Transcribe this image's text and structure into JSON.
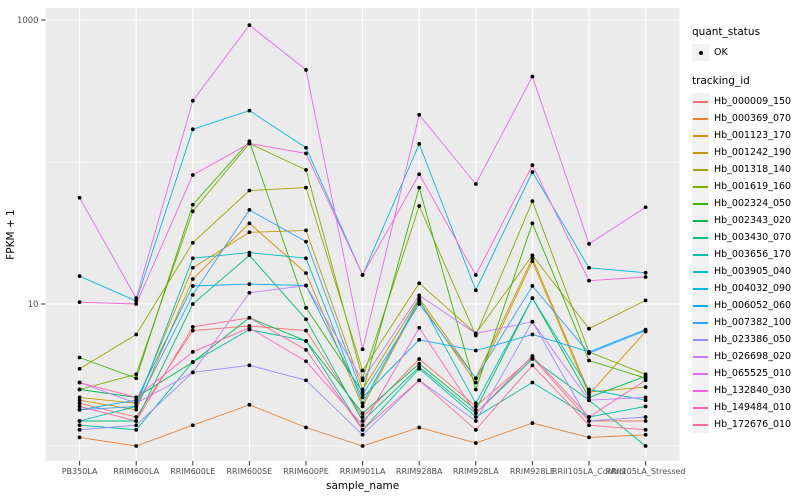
{
  "chart_data": {
    "type": "line",
    "title": "",
    "xlabel": "sample_name",
    "ylabel": "FPKM + 1",
    "y_scale": "log10",
    "grid": true,
    "legend_position": "right",
    "ylim": [
      0.8,
      1200
    ],
    "y_ticks": [
      {
        "value": 1000,
        "label": "1000"
      },
      {
        "value": 10,
        "label": "10"
      }
    ],
    "y_minor_gridlines": [
      1,
      100
    ],
    "point_marker": {
      "shape": "circle",
      "color": "#000000"
    },
    "categories": [
      "PB350LA",
      "RRIM600LA",
      "RRIM600LE",
      "RRIM600SE",
      "RRIM600PE",
      "RRIM901LA",
      "RRIM928BA",
      "RRIM928LA",
      "RRIM928LE",
      "RRII105LA_Control",
      "RRII105LA_Stressed"
    ],
    "series": [
      {
        "name": "Hb_000009_150",
        "color": "#F8766D",
        "values": [
          2.0,
          1.6,
          6.5,
          7.0,
          6.5,
          1.6,
          4.1,
          1.9,
          4.2,
          1.5,
          1.5
        ]
      },
      {
        "name": "Hb_000369_070",
        "color": "#EA8331",
        "values": [
          1.15,
          1.0,
          1.4,
          1.95,
          1.35,
          1.0,
          1.35,
          1.05,
          1.45,
          1.15,
          1.2
        ]
      },
      {
        "name": "Hb_001123_170",
        "color": "#D89000",
        "values": [
          2.1,
          1.8,
          15,
          37,
          16.5,
          1.9,
          10.5,
          2.8,
          20,
          2.3,
          6.4
        ]
      },
      {
        "name": "Hb_001242_190",
        "color": "#C09B00",
        "values": [
          2.2,
          2.0,
          18,
          32,
          33,
          2.5,
          11,
          3.0,
          21,
          2.4,
          2.6
        ]
      },
      {
        "name": "Hb_001318_140",
        "color": "#A3A500",
        "values": [
          3.5,
          6.1,
          27,
          63,
          66,
          3.4,
          14,
          6.2,
          22,
          6.7,
          10.6
        ]
      },
      {
        "name": "Hb_001619_160",
        "color": "#7CAE00",
        "values": [
          2.5,
          3.2,
          45,
          135,
          88,
          3.0,
          49,
          6.0,
          53,
          4.6,
          3.2
        ]
      },
      {
        "name": "Hb_002324_050",
        "color": "#39B600",
        "values": [
          4.2,
          3.0,
          50,
          140,
          9.4,
          2.4,
          66,
          2.5,
          37,
          4.0,
          3.0
        ]
      },
      {
        "name": "Hb_002343_020",
        "color": "#00BB4E",
        "values": [
          2.5,
          2.2,
          3.9,
          8.0,
          5.5,
          1.7,
          3.8,
          1.8,
          11,
          2.2,
          3.1
        ]
      },
      {
        "name": "Hb_003430_070",
        "color": "#00BF7D",
        "values": [
          1.5,
          1.5,
          10,
          22,
          7.8,
          1.5,
          3.6,
          1.7,
          4.1,
          2.1,
          1.0
        ]
      },
      {
        "name": "Hb_003656_170",
        "color": "#00C1A3",
        "values": [
          1.4,
          1.3,
          3.9,
          6.6,
          5.5,
          1.3,
          3.5,
          1.6,
          2.8,
          1.6,
          1.9
        ]
      },
      {
        "name": "Hb_003905_040",
        "color": "#00BFC4",
        "values": [
          1.5,
          1.9,
          21,
          23,
          21,
          2.0,
          10.8,
          2.0,
          11,
          2.5,
          2.1
        ]
      },
      {
        "name": "Hb_004032_090",
        "color": "#00BAE0",
        "values": [
          15.7,
          10.5,
          170,
          230,
          126,
          16,
          134,
          12.5,
          85,
          18,
          16.6
        ]
      },
      {
        "name": "Hb_006052_060",
        "color": "#00B0F6",
        "values": [
          1.8,
          2.1,
          13.4,
          13.8,
          13.5,
          2.2,
          5.6,
          4.7,
          6.1,
          4.6,
          6.6
        ]
      },
      {
        "name": "Hb_007382_100",
        "color": "#35A2FF",
        "values": [
          1.8,
          1.9,
          11.6,
          46,
          27.5,
          2.3,
          10,
          3.0,
          13.4,
          4.5,
          6.5
        ]
      },
      {
        "name": "Hb_023386_050",
        "color": "#9590FF",
        "values": [
          1.3,
          1.4,
          3.3,
          3.7,
          2.9,
          1.2,
          2.9,
          1.5,
          7.5,
          1.5,
          1.6
        ]
      },
      {
        "name": "Hb_026698_020",
        "color": "#C77CFF",
        "values": [
          2.8,
          2.0,
          3.3,
          12,
          13.5,
          2.9,
          11.5,
          6.2,
          7.5,
          2.1,
          2.2
        ]
      },
      {
        "name": "Hb_065525_010",
        "color": "#E76BF3",
        "values": [
          56,
          11,
          270,
          920,
          445,
          4.8,
          215,
          70,
          400,
          26.5,
          48
        ]
      },
      {
        "name": "Hb_132840_030",
        "color": "#FA62DB",
        "values": [
          10.3,
          10,
          81,
          135,
          115,
          16,
          82,
          16,
          95,
          14.6,
          15.5
        ]
      },
      {
        "name": "Hb_149484_010",
        "color": "#FF62BC",
        "values": [
          2.8,
          2.2,
          4.6,
          6.8,
          3.95,
          1.4,
          6.8,
          1.7,
          4.3,
          1.6,
          2.9
        ]
      },
      {
        "name": "Hb_172676_010",
        "color": "#FF6A98",
        "values": [
          1.9,
          1.5,
          6.9,
          8.0,
          4.75,
          1.3,
          2.9,
          1.3,
          3.7,
          1.4,
          1.3
        ]
      }
    ],
    "colors": {
      "panel_bg": "#EBEBEB",
      "grid": "#FFFFFF",
      "tick_text": "#4D4D4D",
      "axis_title": "#000000",
      "tick_mark": "#333333",
      "legend_key_bg": "#F2F2F2",
      "point": "#000000"
    }
  },
  "legend": {
    "quant_status_title": "quant_status",
    "quant_status_items": [
      {
        "label": "OK",
        "marker": "point",
        "color": "#000000"
      }
    ],
    "tracking_id_title": "tracking_id"
  }
}
